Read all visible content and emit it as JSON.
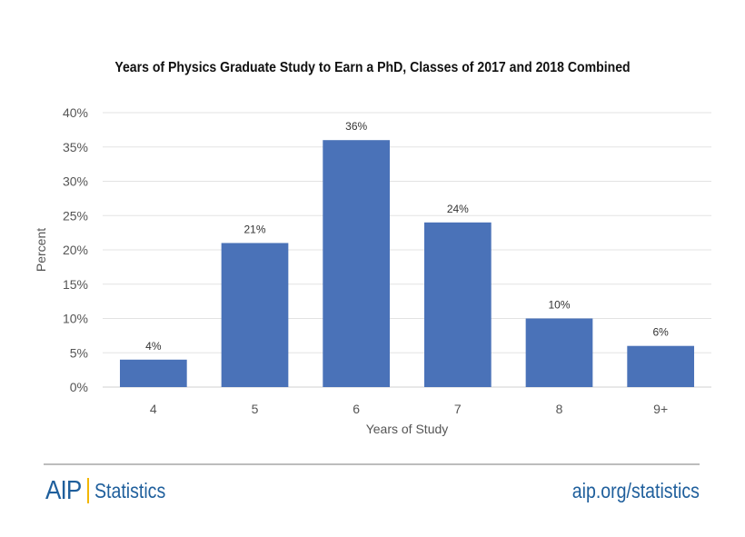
{
  "chart_data": {
    "type": "bar",
    "title": "Years of Physics Graduate Study to Earn a PhD, Classes of 2017 and 2018 Combined",
    "xlabel": "Years of Study",
    "ylabel": "Percent",
    "categories": [
      "4",
      "5",
      "6",
      "7",
      "8",
      "9+"
    ],
    "values": [
      4,
      21,
      36,
      24,
      10,
      6
    ],
    "data_labels": [
      "4%",
      "21%",
      "36%",
      "24%",
      "10%",
      "6%"
    ],
    "ylim": [
      0,
      40
    ],
    "yticks": [
      "0%",
      "5%",
      "10%",
      "15%",
      "20%",
      "25%",
      "30%",
      "35%",
      "40%"
    ],
    "grid": true,
    "bar_color": "#4a72b8"
  },
  "footer": {
    "logo_text": "AIP",
    "logo_subtitle": "Statistics",
    "url": "aip.org/statistics",
    "brand_color": "#1f5f9c",
    "accent_color": "#f2b705"
  }
}
